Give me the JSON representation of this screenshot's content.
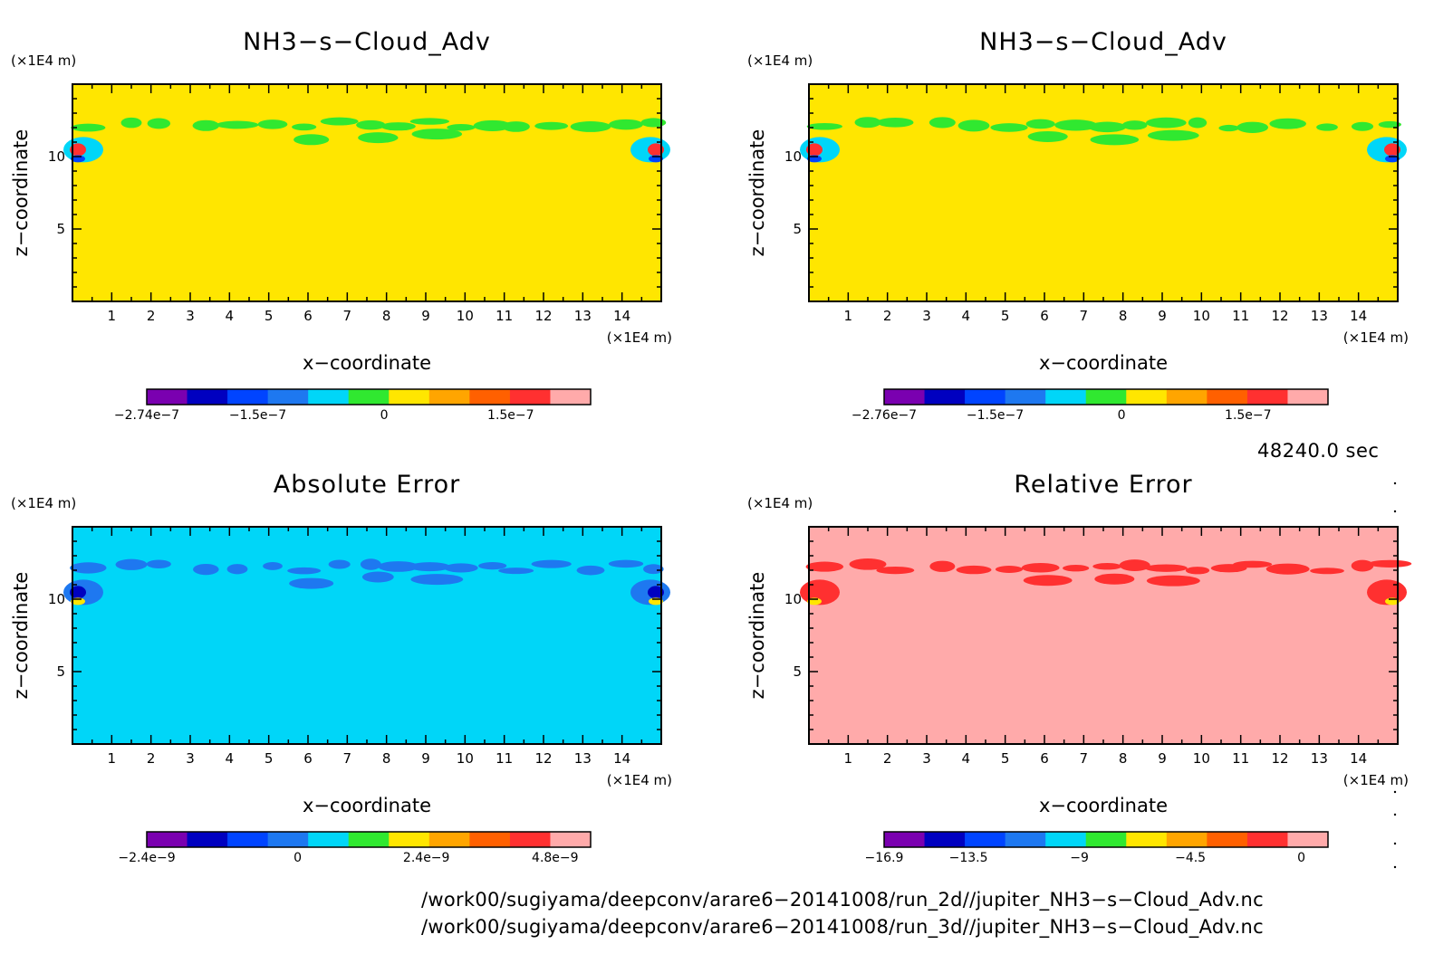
{
  "chart_data": [
    {
      "type": "heatmap",
      "title": "NH3−s−Cloud_Adv",
      "xlabel": "x−coordinate",
      "ylabel": "z−coordinate",
      "x_unit": "(×1E4 m)",
      "y_unit": "(×1E4 m)",
      "xlim": [
        0,
        15
      ],
      "ylim": [
        0,
        15
      ],
      "x_ticks": [
        "1",
        "2",
        "3",
        "4",
        "5",
        "6",
        "7",
        "8",
        "9",
        "10",
        "11",
        "12",
        "13",
        "14"
      ],
      "y_ticks": [
        "5",
        "10"
      ],
      "background_level": "0",
      "colorbar": {
        "colors": [
          "#7a00b0",
          "#0000c0",
          "#0044ff",
          "#1e78f0",
          "#00d6f8",
          "#30e830",
          "#ffe600",
          "#ffa500",
          "#ff6000",
          "#ff3030",
          "#ffaaaa"
        ],
        "tick_labels": [
          "−2.74e−7",
          "−1.5e−7",
          "0",
          "1.5e−7"
        ]
      }
    },
    {
      "type": "heatmap",
      "title": "NH3−s−Cloud_Adv",
      "xlabel": "x−coordinate",
      "ylabel": "z−coordinate",
      "x_unit": "(×1E4 m)",
      "y_unit": "(×1E4 m)",
      "xlim": [
        0,
        15
      ],
      "ylim": [
        0,
        15
      ],
      "x_ticks": [
        "1",
        "2",
        "3",
        "4",
        "5",
        "6",
        "7",
        "8",
        "9",
        "10",
        "11",
        "12",
        "13",
        "14"
      ],
      "y_ticks": [
        "5",
        "10"
      ],
      "background_level": "0",
      "colorbar": {
        "colors": [
          "#7a00b0",
          "#0000c0",
          "#0044ff",
          "#1e78f0",
          "#00d6f8",
          "#30e830",
          "#ffe600",
          "#ffa500",
          "#ff6000",
          "#ff3030",
          "#ffaaaa"
        ],
        "tick_labels": [
          "−2.76e−7",
          "−1.5e−7",
          "0",
          "1.5e−7"
        ]
      }
    },
    {
      "type": "heatmap",
      "title": "Absolute Error",
      "xlabel": "x−coordinate",
      "ylabel": "z−coordinate",
      "x_unit": "(×1E4 m)",
      "y_unit": "(×1E4 m)",
      "xlim": [
        0,
        15
      ],
      "ylim": [
        0,
        15
      ],
      "x_ticks": [
        "1",
        "2",
        "3",
        "4",
        "5",
        "6",
        "7",
        "8",
        "9",
        "10",
        "11",
        "12",
        "13",
        "14"
      ],
      "y_ticks": [
        "5",
        "10"
      ],
      "background_level": "0",
      "colorbar": {
        "colors": [
          "#7a00b0",
          "#0000c0",
          "#0044ff",
          "#1e78f0",
          "#00d6f8",
          "#30e830",
          "#ffe600",
          "#ffa500",
          "#ff6000",
          "#ff3030",
          "#ffaaaa"
        ],
        "tick_labels": [
          "−2.4e−9",
          "0",
          "2.4e−9",
          "4.8e−9"
        ]
      }
    },
    {
      "type": "heatmap",
      "title": "Relative Error",
      "xlabel": "x−coordinate",
      "ylabel": "z−coordinate",
      "x_unit": "(×1E4 m)",
      "y_unit": "(×1E4 m)",
      "xlim": [
        0,
        15
      ],
      "ylim": [
        0,
        15
      ],
      "x_ticks": [
        "1",
        "2",
        "3",
        "4",
        "5",
        "6",
        "7",
        "8",
        "9",
        "10",
        "11",
        "12",
        "13",
        "14"
      ],
      "y_ticks": [
        "5",
        "10"
      ],
      "background_level": "0",
      "colorbar": {
        "colors": [
          "#7a00b0",
          "#0000c0",
          "#0044ff",
          "#1e78f0",
          "#00d6f8",
          "#30e830",
          "#ffe600",
          "#ffa500",
          "#ff6000",
          "#ff3030",
          "#ffaaaa"
        ],
        "tick_labels": [
          "−16.9",
          "−13.5",
          "−9",
          "−4.5",
          "0"
        ]
      }
    }
  ],
  "time_label": "48240.0 sec",
  "footer": {
    "line1": "/work00/sugiyama/deepconv/arare6−20141008/run_2d//jupiter_NH3−s−Cloud_Adv.nc",
    "line2": "/work00/sugiyama/deepconv/arare6−20141008/run_3d//jupiter_NH3−s−Cloud_Adv.nc"
  }
}
